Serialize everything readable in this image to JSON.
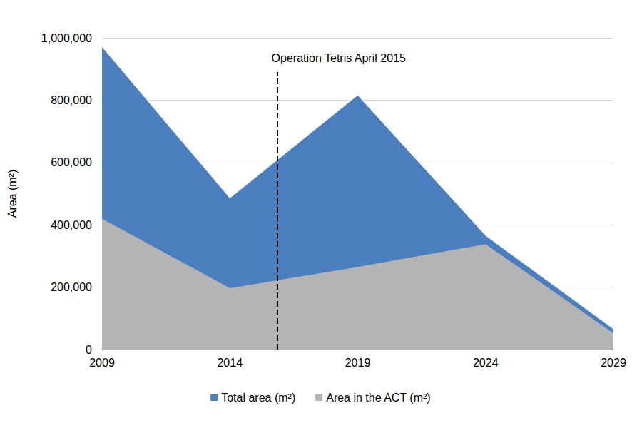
{
  "chart_data": {
    "type": "area",
    "x": [
      2009,
      2014,
      2019,
      2024,
      2029
    ],
    "series": [
      {
        "name": "Total area (m²)",
        "color": "#4a7ebf",
        "values": [
          970000,
          485000,
          815000,
          365000,
          65000
        ]
      },
      {
        "name": "Area in the ACT (m²)",
        "color": "#b4b4b4",
        "values": [
          420000,
          197000,
          265000,
          338000,
          52000
        ]
      }
    ],
    "y_label": "Area (m²)",
    "xlim": [
      2009,
      2029
    ],
    "xticks": [
      2009,
      2014,
      2019,
      2024,
      2029
    ],
    "ylim": [
      0,
      1000000
    ],
    "yticks": [
      0,
      {
        "value": 200000,
        "label": "200,000"
      },
      {
        "value": 400000,
        "label": "400,000"
      },
      {
        "value": 600000,
        "label": "600,000"
      },
      {
        "value": 800000,
        "label": "800,000"
      },
      {
        "value": 1000000,
        "label": "1,000,000"
      }
    ],
    "annotations": [
      {
        "text": "Operation Tetris April 2015",
        "x": 2015.85,
        "y": 890000,
        "line_style": "dashed"
      }
    ],
    "stacked": false,
    "grid": true,
    "legend": "bottom"
  }
}
